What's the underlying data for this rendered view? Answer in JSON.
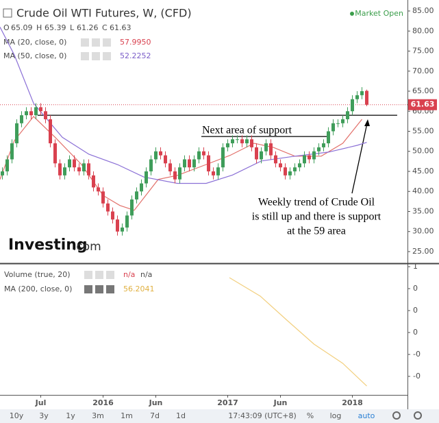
{
  "header": {
    "title": "Crude Oil WTI Futures, W, (CFD)",
    "status": "Market Open",
    "ohlc_labels": [
      "O",
      "H",
      "L",
      "C"
    ]
  },
  "watermark": "Investing",
  "watermark_suffix": ".com",
  "chart_data": {
    "type": "candlestick",
    "x": [
      1,
      3,
      5,
      7,
      9,
      11,
      13,
      15,
      17,
      19,
      21,
      23,
      25,
      27,
      29,
      31,
      33,
      35,
      37,
      39,
      41,
      43,
      45,
      47,
      49,
      51,
      53,
      55,
      57,
      59,
      61,
      63,
      65,
      67,
      69,
      71,
      73,
      75,
      77,
      79,
      81,
      83,
      85,
      87,
      89,
      91,
      93,
      95,
      97,
      99,
      101,
      103,
      105,
      107,
      109,
      111,
      113,
      115,
      117,
      119,
      121,
      123,
      125,
      127,
      129,
      131,
      133,
      135,
      137,
      139,
      141,
      143,
      145,
      147,
      149,
      151,
      153
    ],
    "open": [
      44,
      45,
      48,
      52,
      57,
      59,
      60,
      59,
      61,
      60,
      58,
      52,
      47,
      44,
      46,
      48,
      46,
      45,
      47,
      44,
      41,
      40,
      37,
      35,
      33,
      30,
      31,
      34,
      38,
      40,
      42,
      45,
      48,
      50,
      49,
      47,
      45,
      43,
      46,
      48,
      46,
      48,
      50,
      49,
      45,
      44,
      46,
      51,
      52,
      53,
      53,
      52,
      53,
      51,
      48,
      50,
      52,
      49,
      47,
      46,
      44,
      45,
      46,
      47,
      49,
      48,
      50,
      51,
      52,
      55,
      57,
      57,
      58,
      60,
      63,
      64,
      65.09
    ],
    "high": [
      46,
      49,
      53,
      58,
      60,
      61,
      61,
      62,
      62,
      61,
      59,
      53,
      48,
      47,
      49,
      49,
      47,
      48,
      48,
      45,
      42,
      41,
      38,
      36,
      34,
      32,
      35,
      39,
      41,
      43,
      46,
      49,
      51,
      51,
      50,
      48,
      46,
      47,
      49,
      49,
      49,
      51,
      51,
      50,
      46,
      47,
      52,
      53,
      54,
      54,
      54,
      54,
      54,
      52,
      51,
      53,
      53,
      50,
      48,
      47,
      46,
      47,
      48,
      50,
      50,
      51,
      52,
      53,
      56,
      58,
      58,
      59,
      61,
      64,
      65,
      66,
      65.39
    ],
    "low": [
      43,
      44,
      47,
      51,
      56,
      58,
      58,
      58,
      59,
      57,
      51,
      46,
      43,
      43,
      45,
      45,
      44,
      44,
      43,
      40,
      39,
      36,
      34,
      32,
      29,
      29,
      30,
      33,
      37,
      39,
      41,
      44,
      47,
      48,
      46,
      44,
      42,
      42,
      45,
      45,
      45,
      47,
      48,
      44,
      43,
      43,
      45,
      50,
      51,
      52,
      51,
      51,
      50,
      47,
      47,
      49,
      48,
      46,
      45,
      43,
      43,
      44,
      45,
      46,
      47,
      47,
      49,
      50,
      51,
      54,
      56,
      56,
      57,
      59,
      62,
      63,
      61.26
    ],
    "close": [
      45,
      48,
      52,
      57,
      59,
      60,
      59,
      61,
      60,
      58,
      52,
      47,
      44,
      46,
      48,
      46,
      45,
      47,
      44,
      41,
      40,
      37,
      35,
      33,
      30,
      31,
      34,
      38,
      40,
      42,
      45,
      48,
      50,
      49,
      47,
      45,
      43,
      46,
      48,
      46,
      48,
      50,
      49,
      45,
      44,
      46,
      51,
      52,
      53,
      53,
      52,
      53,
      51,
      48,
      50,
      52,
      49,
      47,
      46,
      44,
      45,
      46,
      47,
      49,
      48,
      50,
      51,
      52,
      55,
      57,
      57,
      58,
      60,
      63,
      64,
      65,
      61.63
    ],
    "up_color": "#3f9d5a",
    "down_color": "#d9414f",
    "series": [
      {
        "name": "MA (20, close, 0)",
        "color": "#e2706a",
        "last_label": "57.9950",
        "x": [
          0,
          6,
          14,
          23,
          34,
          43,
          50,
          56,
          66,
          74,
          86,
          96,
          106,
          114,
          123,
          134,
          143,
          151
        ],
        "values": [
          43,
          52.7,
          58.7,
          53.5,
          46.7,
          39,
          36.5,
          35.3,
          43,
          44,
          46.7,
          49,
          52,
          51,
          48.8,
          48.8,
          52,
          57.99
        ]
      },
      {
        "name": "MA (50, close, 0)",
        "color": "#8a6fd6",
        "last_label": "52.2252",
        "x": [
          0,
          6,
          14,
          26,
          37,
          49,
          60,
          74,
          86,
          97,
          109,
          123,
          137,
          149,
          153
        ],
        "values": [
          81,
          74,
          62,
          53.5,
          49.3,
          46.7,
          43.6,
          42,
          42,
          44.1,
          47.6,
          48.8,
          49.8,
          51.5,
          52.23
        ]
      }
    ],
    "levels": [
      {
        "value": 59,
        "from": 15.7,
        "to": 165.7
      },
      {
        "value": 53.7,
        "from": 84,
        "to": 137
      }
    ],
    "annotations": [
      "Next area of support",
      "Weekly trend of Crude Oil",
      "is still up and there is support",
      "at the 59 area"
    ],
    "xlim": [
      0,
      169
    ],
    "xticks": [
      {
        "value": 17,
        "label": "Jul"
      },
      {
        "value": 43,
        "label": "2016"
      },
      {
        "value": 65,
        "label": "Jun"
      },
      {
        "value": 95,
        "label": "2017"
      },
      {
        "value": 117,
        "label": "Jun"
      },
      {
        "value": 147,
        "label": "2018"
      }
    ],
    "ylim": [
      22.26,
      87.74
    ],
    "yticks": [
      {
        "value": 25,
        "label": "25.00"
      },
      {
        "value": 30,
        "label": "30.00"
      },
      {
        "value": 35,
        "label": "35.00"
      },
      {
        "value": 40,
        "label": "40.00"
      },
      {
        "value": 45,
        "label": "45.00"
      },
      {
        "value": 50,
        "label": "50.00"
      },
      {
        "value": 55,
        "label": "55.00"
      },
      {
        "value": 60,
        "label": "60.00"
      },
      {
        "value": 65,
        "label": "65.00"
      },
      {
        "value": 70,
        "label": "70.00"
      },
      {
        "value": 75,
        "label": "75.00"
      },
      {
        "value": 80,
        "label": "80.00"
      },
      {
        "value": 85,
        "label": "85.00"
      }
    ],
    "grid": false
  },
  "volume_pane": {
    "title": "Volume (true, 20)",
    "value_labels": [
      "n/a",
      "n/a"
    ],
    "ma": {
      "name": "MA (200, close, 0)",
      "last_label": "56.2041",
      "color": "#f2cf7e",
      "x": [
        95.7,
        108.6,
        120,
        131,
        143,
        153
      ],
      "values": [
        0.4,
        0.231,
        0.006,
        -0.206,
        -0.381,
        -0.588
      ]
    },
    "ylim": [
      -0.6625,
      0.525
    ],
    "yticks": [
      {
        "value": 0.5,
        "label": "1"
      },
      {
        "value": 0.3,
        "label": "0"
      },
      {
        "value": 0.1,
        "label": "0"
      },
      {
        "value": -0.1,
        "label": "0"
      },
      {
        "value": -0.3,
        "label": "-0"
      },
      {
        "value": -0.5,
        "label": "-0"
      }
    ]
  },
  "toolbar": {
    "ranges": [
      "10y",
      "3y",
      "1y",
      "3m",
      "1m",
      "7d",
      "1d"
    ],
    "time": "17:43:09 (UTC+8)",
    "options": [
      "%",
      "log",
      "auto"
    ]
  }
}
